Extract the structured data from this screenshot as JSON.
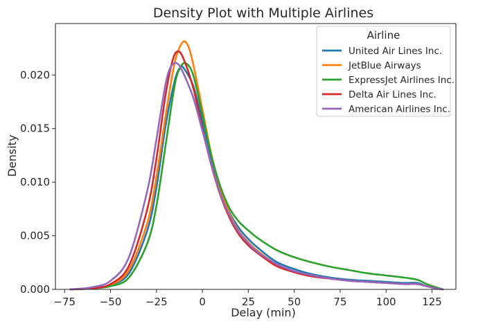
{
  "chart_data": {
    "type": "line",
    "title": "Density Plot with Multiple Airlines",
    "xlabel": "Delay (min)",
    "ylabel": "Density",
    "xlim": [
      -80,
      138
    ],
    "ylim": [
      0,
      0.0248
    ],
    "xticks": [
      -75,
      -50,
      -25,
      0,
      25,
      50,
      75,
      100,
      125
    ],
    "xtick_labels": [
      "−75",
      "−50",
      "−25",
      "0",
      "25",
      "50",
      "75",
      "100",
      "125"
    ],
    "yticks": [
      0,
      0.005,
      0.01,
      0.015,
      0.02
    ],
    "ytick_labels": [
      "0.000",
      "0.005",
      "0.010",
      "0.015",
      "0.020"
    ],
    "grid": false,
    "legend": {
      "title": "Airline",
      "placement": "top-right"
    },
    "series": [
      {
        "name": "United Air Lines Inc.",
        "color": "#1f77b4",
        "x": [
          -72,
          -60,
          -50,
          -40,
          -30,
          -25,
          -20,
          -15,
          -12,
          -10,
          -5,
          0,
          5,
          10,
          15,
          20,
          25,
          30,
          40,
          50,
          60,
          70,
          80,
          90,
          100,
          110,
          117,
          122,
          127,
          131
        ],
        "y": [
          0,
          0.0001,
          0.0004,
          0.0015,
          0.0055,
          0.0095,
          0.0153,
          0.0195,
          0.0207,
          0.0206,
          0.019,
          0.0157,
          0.0122,
          0.0092,
          0.0071,
          0.0057,
          0.0047,
          0.0039,
          0.0026,
          0.0019,
          0.0014,
          0.0011,
          0.0009,
          0.0008,
          0.0007,
          0.0006,
          0.0006,
          0.0003,
          0.0001,
          0
        ]
      },
      {
        "name": "JetBlue Airways",
        "color": "#ff7f0e",
        "x": [
          -72,
          -60,
          -50,
          -40,
          -30,
          -25,
          -20,
          -15,
          -11,
          -8,
          -5,
          0,
          5,
          10,
          15,
          20,
          25,
          30,
          40,
          50,
          60,
          70,
          80,
          90,
          100,
          110,
          117,
          122,
          127,
          131
        ],
        "y": [
          0,
          0.0001,
          0.0004,
          0.0018,
          0.0062,
          0.0105,
          0.0162,
          0.0212,
          0.023,
          0.0228,
          0.021,
          0.0168,
          0.0125,
          0.0093,
          0.007,
          0.0054,
          0.0044,
          0.0036,
          0.0024,
          0.0017,
          0.0013,
          0.001,
          0.0008,
          0.0007,
          0.0006,
          0.0005,
          0.0005,
          0.0003,
          0.0001,
          0
        ]
      },
      {
        "name": "ExpressJet Airlines Inc.",
        "color": "#2ca02c",
        "x": [
          -72,
          -60,
          -50,
          -40,
          -30,
          -25,
          -20,
          -15,
          -12,
          -9,
          -5,
          0,
          5,
          10,
          15,
          20,
          25,
          30,
          40,
          50,
          60,
          70,
          80,
          90,
          100,
          110,
          117,
          122,
          127,
          131
        ],
        "y": [
          0,
          0.0001,
          0.0003,
          0.0011,
          0.0043,
          0.0078,
          0.0135,
          0.0191,
          0.0207,
          0.0211,
          0.02,
          0.0163,
          0.0124,
          0.0095,
          0.0075,
          0.0063,
          0.0055,
          0.0048,
          0.0037,
          0.003,
          0.0025,
          0.0021,
          0.0018,
          0.0015,
          0.0013,
          0.0011,
          0.0009,
          0.0005,
          0.0002,
          0
        ]
      },
      {
        "name": "Delta Air Lines Inc.",
        "color": "#d62728",
        "x": [
          -72,
          -60,
          -50,
          -40,
          -30,
          -25,
          -20,
          -16,
          -13,
          -10,
          -5,
          0,
          5,
          10,
          15,
          20,
          25,
          30,
          40,
          50,
          60,
          70,
          80,
          90,
          100,
          110,
          117,
          122,
          127,
          131
        ],
        "y": [
          0,
          0.0001,
          0.0005,
          0.0022,
          0.0075,
          0.0122,
          0.0182,
          0.0215,
          0.0222,
          0.0214,
          0.0188,
          0.015,
          0.0115,
          0.0087,
          0.0066,
          0.0051,
          0.0041,
          0.0034,
          0.0022,
          0.0016,
          0.0012,
          0.001,
          0.0008,
          0.0007,
          0.0006,
          0.0005,
          0.0005,
          0.0003,
          0.0001,
          0
        ]
      },
      {
        "name": "American Airlines Inc.",
        "color": "#9467bd",
        "x": [
          -72,
          -60,
          -50,
          -40,
          -30,
          -25,
          -20,
          -17,
          -14,
          -11,
          -5,
          0,
          5,
          10,
          15,
          20,
          25,
          30,
          40,
          50,
          60,
          70,
          80,
          90,
          100,
          110,
          117,
          122,
          127,
          131
        ],
        "y": [
          0,
          0.0002,
          0.0008,
          0.003,
          0.0092,
          0.014,
          0.0192,
          0.0208,
          0.0211,
          0.0204,
          0.0179,
          0.0148,
          0.0116,
          0.0088,
          0.0068,
          0.0053,
          0.0043,
          0.0035,
          0.0024,
          0.0017,
          0.0013,
          0.001,
          0.0008,
          0.0007,
          0.0006,
          0.0005,
          0.0005,
          0.0003,
          0.0001,
          0
        ]
      }
    ]
  }
}
